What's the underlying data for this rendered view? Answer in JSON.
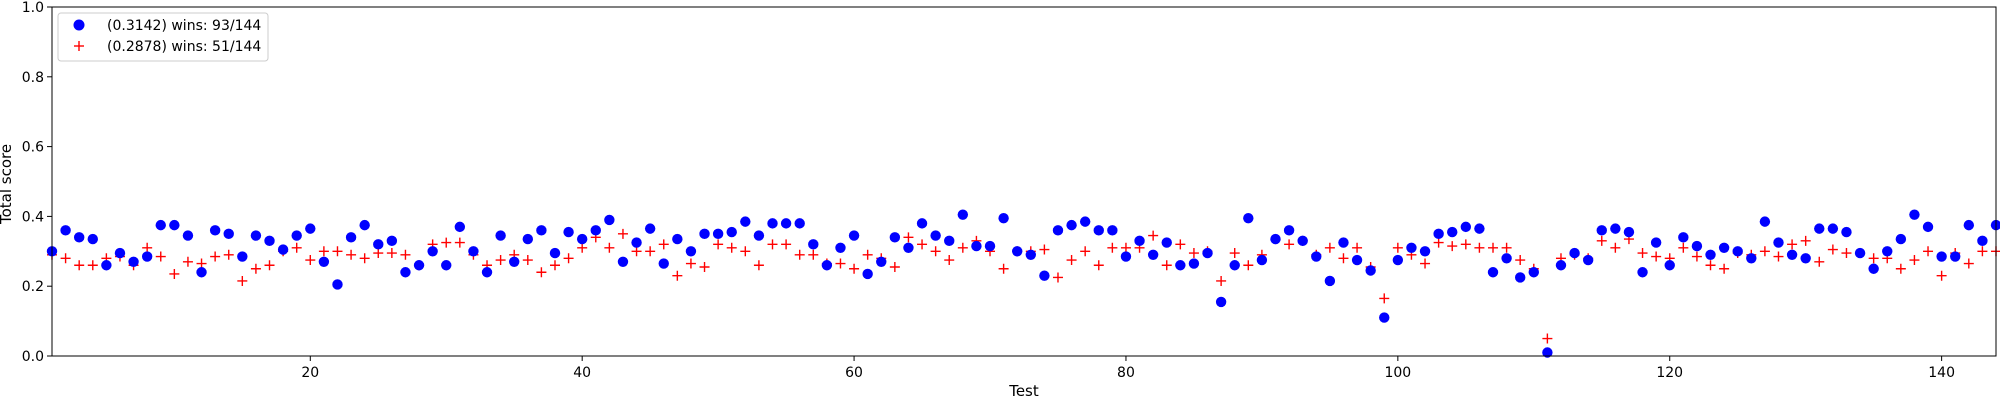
{
  "chart_data": {
    "type": "scatter",
    "xlabel": "Test",
    "ylabel": "Total score",
    "xlim": [
      1,
      144
    ],
    "ylim": [
      0,
      1.0
    ],
    "xticks": [
      20,
      40,
      60,
      80,
      100,
      120,
      140
    ],
    "yticks": [
      0.0,
      0.2,
      0.4,
      0.6,
      0.8,
      1.0
    ],
    "xtick_labels": [
      "20",
      "40",
      "60",
      "80",
      "100",
      "120",
      "140"
    ],
    "ytick_labels": [
      "0.0",
      "0.2",
      "0.4",
      "0.6",
      "0.8",
      "1.0"
    ],
    "grid": false,
    "legend_position": "top-left",
    "series": [
      {
        "name": "(0.3142) wins: 93/144",
        "marker": "circle",
        "color": "#0000ff",
        "values": [
          0.3,
          0.36,
          0.34,
          0.335,
          0.26,
          0.295,
          0.27,
          0.285,
          0.375,
          0.375,
          0.345,
          0.24,
          0.36,
          0.35,
          0.285,
          0.345,
          0.33,
          0.305,
          0.345,
          0.365,
          0.27,
          0.205,
          0.34,
          0.375,
          0.32,
          0.33,
          0.24,
          0.26,
          0.3,
          0.26,
          0.37,
          0.3,
          0.24,
          0.345,
          0.27,
          0.335,
          0.36,
          0.295,
          0.355,
          0.335,
          0.36,
          0.39,
          0.27,
          0.325,
          0.365,
          0.265,
          0.335,
          0.3,
          0.35,
          0.35,
          0.355,
          0.385,
          0.345,
          0.38,
          0.38,
          0.38,
          0.32,
          0.26,
          0.31,
          0.345,
          0.235,
          0.27,
          0.34,
          0.31,
          0.38,
          0.345,
          0.33,
          0.405,
          0.315,
          0.315,
          0.395,
          0.3,
          0.29,
          0.23,
          0.36,
          0.375,
          0.385,
          0.36,
          0.36,
          0.285,
          0.33,
          0.29,
          0.325,
          0.26,
          0.265,
          0.295,
          0.155,
          0.26,
          0.395,
          0.275,
          0.335,
          0.36,
          0.33,
          0.285,
          0.215,
          0.325,
          0.275,
          0.245,
          0.11,
          0.275,
          0.31,
          0.3,
          0.35,
          0.355,
          0.37,
          0.365,
          0.24,
          0.28,
          0.225,
          0.24,
          0.01,
          0.26,
          0.295,
          0.275,
          0.36,
          0.365,
          0.355,
          0.24,
          0.325,
          0.26,
          0.34,
          0.315,
          0.29,
          0.31,
          0.3,
          0.28,
          0.385,
          0.325,
          0.29,
          0.28,
          0.365,
          0.365,
          0.355,
          0.295,
          0.25,
          0.3,
          0.335,
          0.405,
          0.37,
          0.285,
          0.285,
          0.375,
          0.33,
          0.375
        ]
      },
      {
        "name": "(0.2878) wins: 51/144",
        "marker": "plus",
        "color": "#ff0000",
        "values": [
          0.29,
          0.28,
          0.26,
          0.26,
          0.28,
          0.285,
          0.26,
          0.31,
          0.285,
          0.235,
          0.27,
          0.265,
          0.285,
          0.29,
          0.215,
          0.25,
          0.26,
          0.3,
          0.31,
          0.275,
          0.3,
          0.3,
          0.29,
          0.28,
          0.295,
          0.295,
          0.29,
          0.26,
          0.32,
          0.325,
          0.325,
          0.29,
          0.26,
          0.275,
          0.29,
          0.275,
          0.24,
          0.26,
          0.28,
          0.31,
          0.34,
          0.31,
          0.35,
          0.3,
          0.3,
          0.32,
          0.23,
          0.265,
          0.255,
          0.32,
          0.31,
          0.3,
          0.26,
          0.32,
          0.32,
          0.29,
          0.29,
          0.265,
          0.265,
          0.25,
          0.29,
          0.28,
          0.255,
          0.34,
          0.32,
          0.3,
          0.275,
          0.31,
          0.33,
          0.3,
          0.25,
          0.3,
          0.3,
          0.305,
          0.225,
          0.275,
          0.3,
          0.26,
          0.31,
          0.31,
          0.31,
          0.345,
          0.26,
          0.32,
          0.295,
          0.3,
          0.215,
          0.295,
          0.26,
          0.29,
          0.335,
          0.32,
          0.33,
          0.29,
          0.31,
          0.28,
          0.31,
          0.255,
          0.165,
          0.31,
          0.29,
          0.265,
          0.325,
          0.315,
          0.32,
          0.31,
          0.31,
          0.31,
          0.275,
          0.25,
          0.05,
          0.28,
          0.29,
          0.28,
          0.33,
          0.31,
          0.335,
          0.295,
          0.285,
          0.28,
          0.31,
          0.285,
          0.26,
          0.25,
          0.295,
          0.29,
          0.3,
          0.285,
          0.32,
          0.33,
          0.27,
          0.305,
          0.295,
          0.295,
          0.28,
          0.28,
          0.25,
          0.275,
          0.3,
          0.23,
          0.295,
          0.265,
          0.3,
          0.3
        ]
      }
    ]
  }
}
